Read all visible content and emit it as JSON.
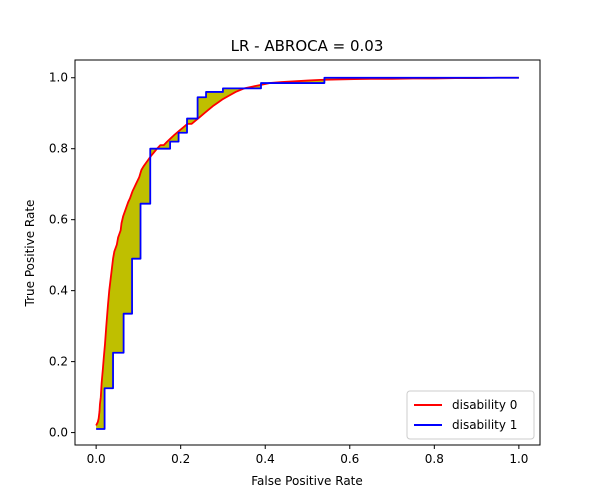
{
  "chart_data": {
    "type": "line",
    "title": "LR - ABROCA = 0.03",
    "xlabel": "False Positive Rate",
    "ylabel": "True Positive Rate",
    "xlim": [
      -0.05,
      1.05
    ],
    "ylim": [
      -0.035,
      1.05
    ],
    "xticks": [
      0.0,
      0.2,
      0.4,
      0.6,
      0.8,
      1.0
    ],
    "yticks": [
      0.0,
      0.2,
      0.4,
      0.6,
      0.8,
      1.0
    ],
    "xtick_labels": [
      "0.0",
      "0.2",
      "0.4",
      "0.6",
      "0.8",
      "1.0"
    ],
    "ytick_labels": [
      "0.0",
      "0.2",
      "0.4",
      "0.6",
      "0.8",
      "1.0"
    ],
    "grid": false,
    "legend_position": "bottom-right",
    "fill_between_color": "#bfbf00",
    "series": [
      {
        "name": "disability 0",
        "color": "#ff0000",
        "x": [
          0.0,
          0.004,
          0.006,
          0.008,
          0.009,
          0.011,
          0.013,
          0.016,
          0.018,
          0.021,
          0.024,
          0.026,
          0.028,
          0.031,
          0.034,
          0.037,
          0.04,
          0.043,
          0.046,
          0.049,
          0.052,
          0.055,
          0.058,
          0.06,
          0.064,
          0.067,
          0.07,
          0.073,
          0.076,
          0.08,
          0.083,
          0.086,
          0.09,
          0.094,
          0.098,
          0.102,
          0.107,
          0.112,
          0.118,
          0.124,
          0.13,
          0.137,
          0.144,
          0.152,
          0.16,
          0.168,
          0.177,
          0.186,
          0.196,
          0.206,
          0.216,
          0.226,
          0.236,
          0.246,
          0.256,
          0.266,
          0.276,
          0.288,
          0.3,
          0.315,
          0.33,
          0.35,
          0.37,
          0.39,
          0.41,
          0.44,
          0.47,
          0.5,
          0.53,
          0.57,
          0.61,
          0.65,
          0.7,
          0.75,
          0.8,
          0.85,
          0.9,
          0.95,
          1.0
        ],
        "y": [
          0.02,
          0.03,
          0.04,
          0.06,
          0.08,
          0.1,
          0.14,
          0.18,
          0.21,
          0.25,
          0.3,
          0.33,
          0.36,
          0.4,
          0.43,
          0.46,
          0.49,
          0.51,
          0.52,
          0.53,
          0.55,
          0.56,
          0.57,
          0.59,
          0.61,
          0.62,
          0.63,
          0.64,
          0.65,
          0.66,
          0.67,
          0.68,
          0.69,
          0.7,
          0.71,
          0.72,
          0.74,
          0.75,
          0.76,
          0.77,
          0.78,
          0.79,
          0.8,
          0.81,
          0.81,
          0.82,
          0.83,
          0.84,
          0.85,
          0.86,
          0.87,
          0.87,
          0.88,
          0.89,
          0.9,
          0.91,
          0.92,
          0.93,
          0.94,
          0.95,
          0.96,
          0.97,
          0.975,
          0.98,
          0.985,
          0.988,
          0.99,
          0.992,
          0.994,
          0.995,
          0.996,
          0.997,
          0.997,
          0.998,
          0.998,
          0.999,
          0.999,
          1.0,
          1.0
        ]
      },
      {
        "name": "disability 1",
        "color": "#0000ff",
        "x": [
          0.0,
          0.02,
          0.02,
          0.04,
          0.04,
          0.065,
          0.065,
          0.085,
          0.085,
          0.105,
          0.105,
          0.128,
          0.128,
          0.175,
          0.175,
          0.195,
          0.195,
          0.215,
          0.215,
          0.24,
          0.24,
          0.26,
          0.26,
          0.3,
          0.3,
          0.39,
          0.39,
          0.54,
          0.54,
          1.0
        ],
        "y": [
          0.01,
          0.01,
          0.125,
          0.125,
          0.225,
          0.225,
          0.335,
          0.335,
          0.49,
          0.49,
          0.645,
          0.645,
          0.8,
          0.8,
          0.82,
          0.82,
          0.845,
          0.845,
          0.885,
          0.885,
          0.945,
          0.945,
          0.96,
          0.96,
          0.97,
          0.97,
          0.985,
          0.985,
          1.0,
          1.0
        ]
      }
    ]
  }
}
